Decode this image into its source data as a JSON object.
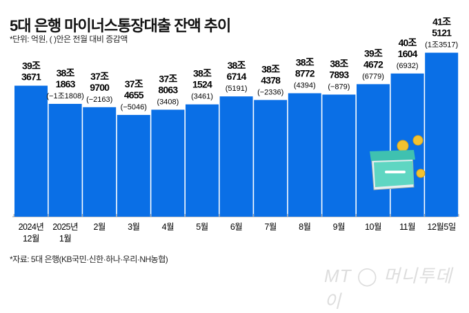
{
  "header": {
    "title": "5대 은행 마이너스통장대출 잔액 추이",
    "subtitle": "*단위: 억원, (  )안은 전월 대비 증감액"
  },
  "footer": {
    "source": "*자료: 5대 은행(KB국민·신한·하나·우리·NH농협)",
    "logo_text": "MT 머니투데이"
  },
  "decoration": {
    "icon": "calendar-with-coins-icon"
  },
  "chart_data": {
    "type": "bar",
    "categories": [
      [
        "2024년",
        "12월"
      ],
      [
        "2025년",
        "1월"
      ],
      [
        "2월"
      ],
      [
        "3월"
      ],
      [
        "4월"
      ],
      [
        "5월"
      ],
      [
        "6월"
      ],
      [
        "7월"
      ],
      [
        "8월"
      ],
      [
        "9월"
      ],
      [
        "10월"
      ],
      [
        "11월"
      ],
      [
        "12월5일"
      ]
    ],
    "values": [
      393671,
      381863,
      379700,
      374655,
      378063,
      381524,
      386714,
      384378,
      388772,
      387893,
      394672,
      401604,
      415121
    ],
    "value_labels": [
      [
        "39조",
        "3671"
      ],
      [
        "38조",
        "1863"
      ],
      [
        "37조",
        "9700"
      ],
      [
        "37조",
        "4655"
      ],
      [
        "37조",
        "8063"
      ],
      [
        "38조",
        "1524"
      ],
      [
        "38조",
        "6714"
      ],
      [
        "38조",
        "4378"
      ],
      [
        "38조",
        "8772"
      ],
      [
        "38조",
        "7893"
      ],
      [
        "39조",
        "4672"
      ],
      [
        "40조",
        "1604"
      ],
      [
        "41조",
        "5121"
      ]
    ],
    "change_labels": [
      "",
      "(−1조1808)",
      "(−2163)",
      "(−5046)",
      "(3408)",
      "(3461)",
      "(5191)",
      "(−2336)",
      "(4394)",
      "(−879)",
      "(6779)",
      "(6932)",
      "(1조3517)"
    ],
    "unit": "억원",
    "ylim": [
      308500,
      431500
    ],
    "grid": false,
    "colors": {
      "bar": "#0a6fe6",
      "last_bar": "#0a6fe6"
    }
  }
}
